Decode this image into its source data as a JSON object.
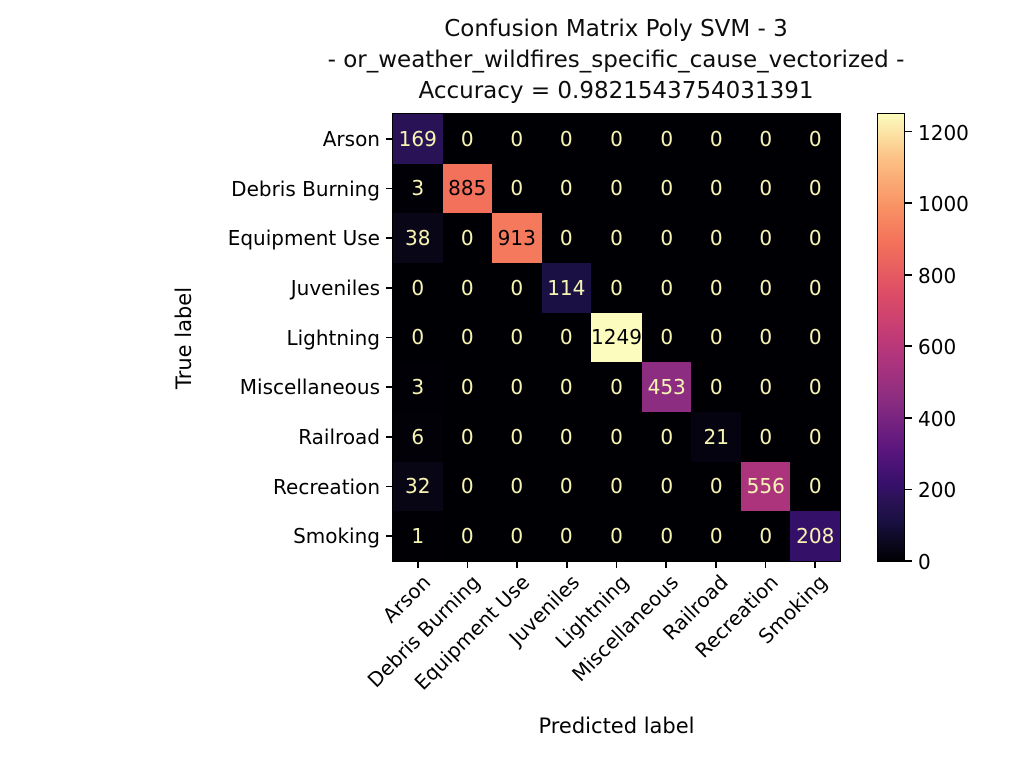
{
  "title": {
    "line1": "Confusion Matrix Poly SVM - 3",
    "line2": "- or_weather_wildfires_specific_cause_vectorized -",
    "line3": "Accuracy = 0.9821543754031391"
  },
  "chart_data": {
    "type": "heatmap",
    "title": "Confusion Matrix Poly SVM - 3 - or_weather_wildfires_specific_cause_vectorized - Accuracy = 0.9821543754031391",
    "xlabel": "Predicted label",
    "ylabel": "True label",
    "categories": [
      "Arson",
      "Debris Burning",
      "Equipment Use",
      "Juveniles",
      "Lightning",
      "Miscellaneous",
      "Railroad",
      "Recreation",
      "Smoking"
    ],
    "matrix": [
      [
        169,
        0,
        0,
        0,
        0,
        0,
        0,
        0,
        0
      ],
      [
        3,
        885,
        0,
        0,
        0,
        0,
        0,
        0,
        0
      ],
      [
        38,
        0,
        913,
        0,
        0,
        0,
        0,
        0,
        0
      ],
      [
        0,
        0,
        0,
        114,
        0,
        0,
        0,
        0,
        0
      ],
      [
        0,
        0,
        0,
        0,
        1249,
        0,
        0,
        0,
        0
      ],
      [
        3,
        0,
        0,
        0,
        0,
        453,
        0,
        0,
        0
      ],
      [
        6,
        0,
        0,
        0,
        0,
        0,
        21,
        0,
        0
      ],
      [
        32,
        0,
        0,
        0,
        0,
        0,
        0,
        556,
        0
      ],
      [
        1,
        0,
        0,
        0,
        0,
        0,
        0,
        0,
        208
      ]
    ],
    "vmin": 0,
    "vmax": 1249,
    "colormap": "magma",
    "colormap_stops": [
      [
        0.0,
        "#000004"
      ],
      [
        0.03,
        "#090617"
      ],
      [
        0.09,
        "#1a1043"
      ],
      [
        0.14,
        "#2c1258"
      ],
      [
        0.17,
        "#36106b"
      ],
      [
        0.25,
        "#5b167e"
      ],
      [
        0.36,
        "#8b2d81"
      ],
      [
        0.45,
        "#ae347d"
      ],
      [
        0.5,
        "#c03a76"
      ],
      [
        0.6,
        "#de4d66"
      ],
      [
        0.71,
        "#f3715a"
      ],
      [
        0.8,
        "#f99566"
      ],
      [
        0.9,
        "#fcc185"
      ],
      [
        1.0,
        "#fbfcbd"
      ]
    ],
    "cell_text_light": "#f6f3b3",
    "cell_text_dark": "#000004",
    "colorbar_ticks": [
      0,
      200,
      400,
      600,
      800,
      1000,
      1200
    ],
    "legend_position": "right-colorbar",
    "grid": false
  }
}
